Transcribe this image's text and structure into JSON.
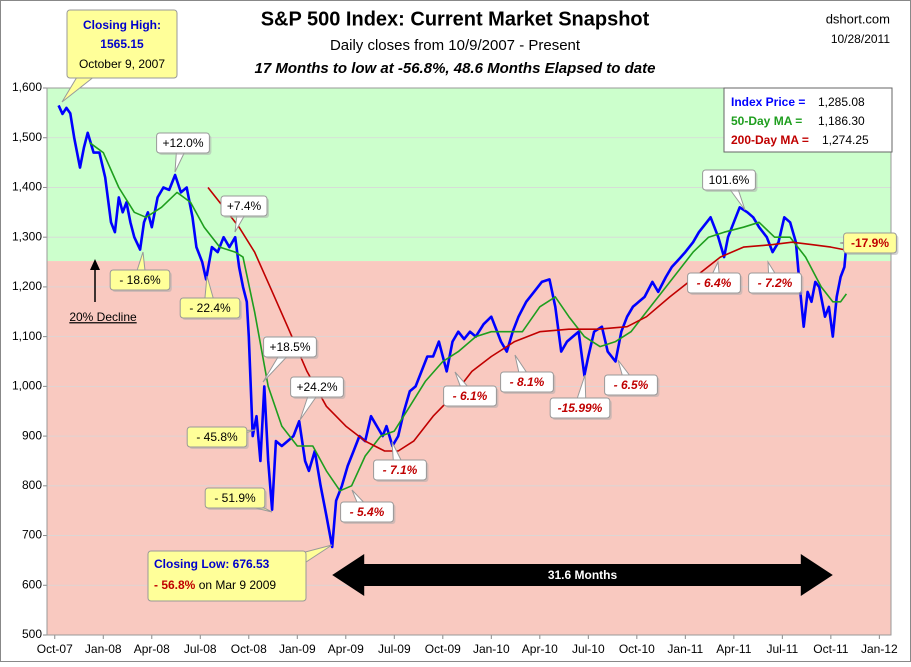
{
  "chart_data": {
    "type": "line",
    "title": "S&P 500 Index: Current Market Snapshot",
    "subtitle": "Daily closes from 10/9/2007 - Present",
    "note": "17 Months to low at -56.8%,  48.6  Months Elapsed to date",
    "source": "dshort.com",
    "date": "10/28/2011",
    "xlim": [
      2007.71,
      2012.06
    ],
    "xticks": [
      {
        "value": 2007.75,
        "label": "Oct-07"
      },
      {
        "value": 2008.0,
        "label": "Jan-08"
      },
      {
        "value": 2008.25,
        "label": "Apr-08"
      },
      {
        "value": 2008.5,
        "label": "Jul-08"
      },
      {
        "value": 2008.75,
        "label": "Oct-08"
      },
      {
        "value": 2009.0,
        "label": "Jan-09"
      },
      {
        "value": 2009.25,
        "label": "Apr-09"
      },
      {
        "value": 2009.5,
        "label": "Jul-09"
      },
      {
        "value": 2009.75,
        "label": "Oct-09"
      },
      {
        "value": 2010.0,
        "label": "Jan-10"
      },
      {
        "value": 2010.25,
        "label": "Apr-10"
      },
      {
        "value": 2010.5,
        "label": "Jul-10"
      },
      {
        "value": 2010.75,
        "label": "Oct-10"
      },
      {
        "value": 2011.0,
        "label": "Jan-11"
      },
      {
        "value": 2011.25,
        "label": "Apr-11"
      },
      {
        "value": 2011.5,
        "label": "Jul-11"
      },
      {
        "value": 2011.75,
        "label": "Oct-11"
      },
      {
        "value": 2012.0,
        "label": "Jan-12"
      }
    ],
    "ylim": [
      500,
      1600
    ],
    "yticks": [
      {
        "value": 500,
        "label": "500"
      },
      {
        "value": 600,
        "label": "600"
      },
      {
        "value": 700,
        "label": "700"
      },
      {
        "value": 800,
        "label": "800"
      },
      {
        "value": 900,
        "label": "900"
      },
      {
        "value": 1000,
        "label": "1,000"
      },
      {
        "value": 1100,
        "label": "1,100"
      },
      {
        "value": 1200,
        "label": "1,200"
      },
      {
        "value": 1300,
        "label": "1,300"
      },
      {
        "value": 1400,
        "label": "1,400"
      },
      {
        "value": 1500,
        "label": "1,500"
      },
      {
        "value": 1600,
        "label": "1,600"
      }
    ],
    "grid": true,
    "zone_colors": [
      "#ccffcc",
      "#f9c9c0"
    ],
    "decline": {
      "label": "20% Decline",
      "value": 1252
    },
    "series": [
      {
        "name": "Index Price =",
        "value_label": "1,285.08",
        "color": "#0000ff",
        "width": 2.6,
        "x": [
          2007.77,
          2007.79,
          2007.81,
          2007.83,
          2007.85,
          2007.88,
          2007.9,
          2007.92,
          2007.95,
          2007.98,
          2008.01,
          2008.04,
          2008.06,
          2008.08,
          2008.1,
          2008.12,
          2008.14,
          2008.16,
          2008.19,
          2008.21,
          2008.23,
          2008.25,
          2008.28,
          2008.31,
          2008.34,
          2008.37,
          2008.4,
          2008.43,
          2008.46,
          2008.48,
          2008.51,
          2008.53,
          2008.56,
          2008.59,
          2008.62,
          2008.65,
          2008.68,
          2008.7,
          2008.72,
          2008.74,
          2008.75,
          2008.77,
          2008.79,
          2008.81,
          2008.83,
          2008.85,
          2008.87,
          2008.89,
          2008.92,
          2008.95,
          2008.98,
          2009.01,
          2009.04,
          2009.06,
          2009.09,
          2009.12,
          2009.15,
          2009.18,
          2009.2,
          2009.23,
          2009.26,
          2009.29,
          2009.32,
          2009.35,
          2009.38,
          2009.41,
          2009.44,
          2009.46,
          2009.49,
          2009.52,
          2009.55,
          2009.58,
          2009.61,
          2009.64,
          2009.67,
          2009.7,
          2009.73,
          2009.77,
          2009.8,
          2009.83,
          2009.86,
          2009.89,
          2009.92,
          2009.96,
          2010.0,
          2010.05,
          2010.08,
          2010.11,
          2010.14,
          2010.18,
          2010.22,
          2010.26,
          2010.3,
          2010.33,
          2010.36,
          2010.39,
          2010.42,
          2010.45,
          2010.48,
          2010.5,
          2010.53,
          2010.57,
          2010.6,
          2010.64,
          2010.67,
          2010.7,
          2010.73,
          2010.76,
          2010.79,
          2010.83,
          2010.86,
          2010.9,
          2010.93,
          2010.97,
          2011.0,
          2011.04,
          2011.07,
          2011.11,
          2011.13,
          2011.17,
          2011.2,
          2011.22,
          2011.25,
          2011.28,
          2011.32,
          2011.35,
          2011.38,
          2011.42,
          2011.45,
          2011.48,
          2011.51,
          2011.54,
          2011.57,
          2011.59,
          2011.61,
          2011.63,
          2011.65,
          2011.67,
          2011.69,
          2011.72,
          2011.74,
          2011.76,
          2011.78,
          2011.8,
          2011.82,
          2011.83
        ],
        "values": [
          1565,
          1548,
          1560,
          1549,
          1500,
          1440,
          1480,
          1510,
          1470,
          1470,
          1420,
          1330,
          1310,
          1380,
          1350,
          1370,
          1330,
          1300,
          1275,
          1330,
          1350,
          1320,
          1380,
          1400,
          1395,
          1425,
          1390,
          1400,
          1340,
          1280,
          1250,
          1215,
          1280,
          1270,
          1300,
          1280,
          1300,
          1240,
          1200,
          1170,
          1100,
          900,
          940,
          850,
          1000,
          850,
          752,
          890,
          880,
          890,
          900,
          930,
          850,
          830,
          870,
          800,
          740,
          677,
          770,
          800,
          840,
          870,
          900,
          890,
          940,
          920,
          900,
          920,
          880,
          900,
          950,
          990,
          1000,
          1030,
          1060,
          1060,
          1090,
          1030,
          1090,
          1110,
          1095,
          1110,
          1100,
          1125,
          1140,
          1090,
          1070,
          1110,
          1140,
          1170,
          1190,
          1210,
          1215,
          1160,
          1070,
          1090,
          1100,
          1110,
          1022,
          1060,
          1110,
          1120,
          1070,
          1050,
          1110,
          1140,
          1160,
          1170,
          1180,
          1210,
          1190,
          1220,
          1240,
          1257,
          1270,
          1290,
          1310,
          1330,
          1340,
          1300,
          1260,
          1300,
          1330,
          1360,
          1350,
          1340,
          1320,
          1300,
          1270,
          1290,
          1340,
          1330,
          1290,
          1200,
          1120,
          1190,
          1170,
          1210,
          1200,
          1140,
          1160,
          1100,
          1180,
          1220,
          1240,
          1285
        ]
      },
      {
        "name": "50-Day MA =",
        "value_label": "1,186.30",
        "color": "#1e9e1e",
        "width": 1.6,
        "x": [
          2007.93,
          2008.0,
          2008.08,
          2008.16,
          2008.22,
          2008.3,
          2008.38,
          2008.45,
          2008.52,
          2008.6,
          2008.68,
          2008.72,
          2008.78,
          2008.85,
          2008.92,
          2009.0,
          2009.08,
          2009.15,
          2009.22,
          2009.28,
          2009.35,
          2009.43,
          2009.5,
          2009.58,
          2009.66,
          2009.75,
          2009.83,
          2009.92,
          2010.0,
          2010.08,
          2010.16,
          2010.25,
          2010.33,
          2010.4,
          2010.48,
          2010.56,
          2010.64,
          2010.72,
          2010.8,
          2010.88,
          2010.96,
          2011.04,
          2011.12,
          2011.2,
          2011.3,
          2011.38,
          2011.46,
          2011.54,
          2011.62,
          2011.7,
          2011.76,
          2011.8,
          2011.83
        ],
        "values": [
          1490,
          1470,
          1400,
          1350,
          1340,
          1360,
          1390,
          1370,
          1320,
          1280,
          1270,
          1260,
          1150,
          1000,
          920,
          880,
          880,
          830,
          790,
          800,
          860,
          900,
          910,
          960,
          1010,
          1050,
          1070,
          1100,
          1110,
          1110,
          1110,
          1160,
          1180,
          1140,
          1100,
          1080,
          1090,
          1110,
          1150,
          1190,
          1230,
          1270,
          1300,
          1310,
          1320,
          1330,
          1300,
          1300,
          1260,
          1200,
          1170,
          1170,
          1186
        ]
      },
      {
        "name": "200-Day MA =",
        "value_label": "1,274.25",
        "color": "#c00000",
        "width": 1.6,
        "x": [
          2008.54,
          2008.62,
          2008.7,
          2008.78,
          2008.86,
          2008.95,
          2009.05,
          2009.15,
          2009.25,
          2009.35,
          2009.45,
          2009.52,
          2009.6,
          2009.7,
          2009.8,
          2009.9,
          2010.0,
          2010.12,
          2010.25,
          2010.4,
          2010.55,
          2010.7,
          2010.8,
          2010.92,
          2011.05,
          2011.18,
          2011.3,
          2011.45,
          2011.55,
          2011.65,
          2011.75,
          2011.83
        ],
        "values": [
          1400,
          1360,
          1320,
          1270,
          1200,
          1120,
          1030,
          960,
          920,
          890,
          870,
          870,
          890,
          940,
          980,
          1030,
          1060,
          1090,
          1110,
          1115,
          1115,
          1120,
          1140,
          1180,
          1220,
          1260,
          1280,
          1285,
          1290,
          1285,
          1280,
          1274
        ]
      }
    ],
    "callouts": [
      {
        "text": "+12.0%",
        "kind": "gain"
      },
      {
        "text": "+7.4%",
        "kind": "gain"
      },
      {
        "text": "+18.5%",
        "kind": "gain"
      },
      {
        "text": "+24.2%",
        "kind": "gain"
      },
      {
        "text": "101.6%",
        "kind": "gain"
      },
      {
        "text": "- 18.6%",
        "kind": "loss"
      },
      {
        "text": "- 22.4%",
        "kind": "loss"
      },
      {
        "text": "- 45.8%",
        "kind": "loss"
      },
      {
        "text": "- 51.9%",
        "kind": "loss"
      },
      {
        "text": "-17.9%",
        "kind": "current"
      },
      {
        "text": "- 7.1%",
        "kind": "drop"
      },
      {
        "text": "- 5.4%",
        "kind": "drop"
      },
      {
        "text": "- 6.1%",
        "kind": "drop"
      },
      {
        "text": "- 8.1%",
        "kind": "drop"
      },
      {
        "text": "-15.99%",
        "kind": "drop"
      },
      {
        "text": "- 6.5%",
        "kind": "drop"
      },
      {
        "text": "- 6.4%",
        "kind": "drop"
      },
      {
        "text": "- 7.2%",
        "kind": "drop"
      }
    ],
    "closing_high": {
      "title": "Closing High:",
      "value": "1565.15",
      "date": "October 9, 2007"
    },
    "closing_low": {
      "label": "Closing Low: 676.53",
      "change": "- 56.8%",
      "date": " on Mar 9 2009"
    },
    "span": {
      "label": "31.6  Months",
      "x": [
        2009.18,
        2011.76
      ]
    }
  }
}
